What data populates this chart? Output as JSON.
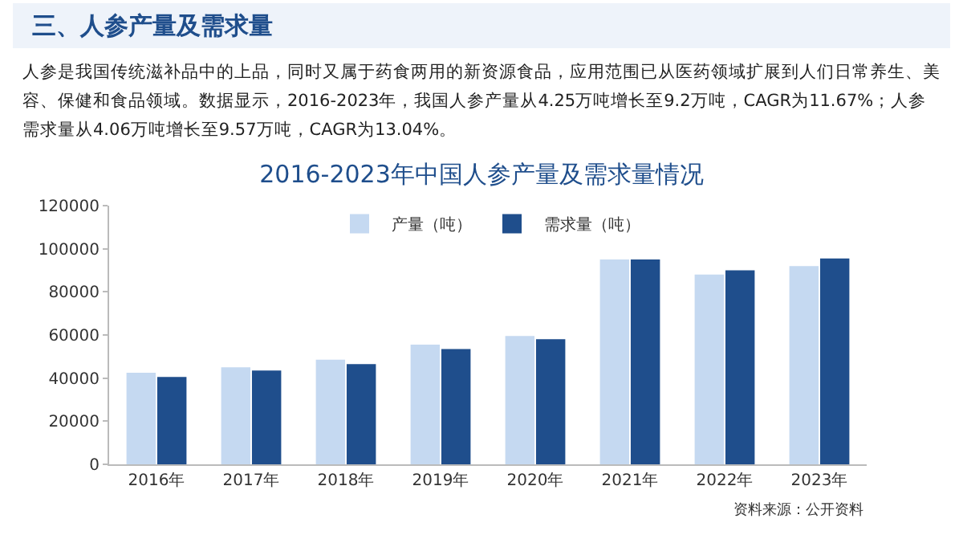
{
  "chart_data": {
    "type": "bar",
    "title": "2016-2023年中国人参产量及需求量情况",
    "categories": [
      "2016年",
      "2017年",
      "2018年",
      "2019年",
      "2020年",
      "2021年",
      "2022年",
      "2023年"
    ],
    "series": [
      {
        "name": "产量（吨）",
        "color": "#c5d9f1",
        "values": [
          42500,
          45000,
          48500,
          55500,
          59500,
          95000,
          88000,
          92000
        ]
      },
      {
        "name": "需求量（吨）",
        "color": "#1f4e8c",
        "values": [
          40500,
          43500,
          46500,
          53500,
          58000,
          95000,
          90000,
          95500
        ]
      }
    ],
    "ylim": [
      0,
      120000
    ],
    "yticks": [
      0,
      20000,
      40000,
      60000,
      80000,
      100000,
      120000
    ],
    "grid": false,
    "legend": "top",
    "annotations": [
      "三、人参产量及需求量",
      "人参是我国传统滋补品中的上品，同时又属于药食两用的新资源食品，应用范围已从医药领域扩展到人们日常养生、美容、保健和食品领域。数据显示，2016-2023年，我国人参产量从4.25万吨增长至9.2万吨，CAGR为11.67%；人参需求量从4.06万吨增长至9.57万吨，CAGR为13.04%。",
      "资料来源：公开资料"
    ]
  }
}
